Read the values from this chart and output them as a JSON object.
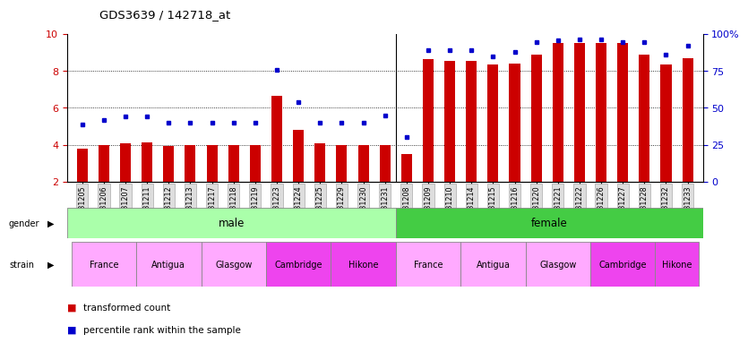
{
  "title": "GDS3639 / 142718_at",
  "samples": [
    "GSM231205",
    "GSM231206",
    "GSM231207",
    "GSM231211",
    "GSM231212",
    "GSM231213",
    "GSM231217",
    "GSM231218",
    "GSM231219",
    "GSM231223",
    "GSM231224",
    "GSM231225",
    "GSM231229",
    "GSM231230",
    "GSM231231",
    "GSM231208",
    "GSM231209",
    "GSM231210",
    "GSM231214",
    "GSM231215",
    "GSM231216",
    "GSM231220",
    "GSM231221",
    "GSM231222",
    "GSM231226",
    "GSM231227",
    "GSM231228",
    "GSM231232",
    "GSM231233"
  ],
  "red_bars": [
    3.8,
    4.0,
    4.1,
    4.15,
    3.95,
    4.0,
    4.0,
    4.0,
    4.0,
    6.65,
    4.8,
    4.1,
    4.0,
    4.0,
    4.0,
    3.5,
    8.65,
    8.55,
    8.55,
    8.35,
    8.4,
    8.85,
    9.5,
    9.5,
    9.5,
    9.5,
    8.85,
    8.35,
    8.7
  ],
  "blue_dots": [
    5.1,
    5.35,
    5.55,
    5.55,
    5.2,
    5.2,
    5.2,
    5.2,
    5.2,
    8.05,
    6.3,
    5.2,
    5.2,
    5.2,
    5.6,
    4.4,
    9.1,
    9.1,
    9.1,
    8.8,
    9.0,
    9.55,
    9.65,
    9.7,
    9.7,
    9.55,
    9.55,
    8.85,
    9.35
  ],
  "ylim_left": [
    2,
    10
  ],
  "ylim_right": [
    0,
    100
  ],
  "yticks_left": [
    2,
    4,
    6,
    8,
    10
  ],
  "yticks_right": [
    0,
    25,
    50,
    75,
    100
  ],
  "bar_color": "#cc0000",
  "dot_color": "#0000cc",
  "background_color": "#ffffff",
  "tick_label_color_left": "#cc0000",
  "tick_label_color_right": "#0000cc",
  "bar_width": 0.5,
  "n_male": 15,
  "gender_male_color": "#aaffaa",
  "gender_female_color": "#44cc44",
  "strain_defs": [
    {
      "label": "France",
      "xstart": 0,
      "xend": 3,
      "color": "#ffaaff"
    },
    {
      "label": "Antigua",
      "xstart": 3,
      "xend": 6,
      "color": "#ffaaff"
    },
    {
      "label": "Glasgow",
      "xstart": 6,
      "xend": 9,
      "color": "#ffaaff"
    },
    {
      "label": "Cambridge",
      "xstart": 9,
      "xend": 12,
      "color": "#ee44ee"
    },
    {
      "label": "Hikone",
      "xstart": 12,
      "xend": 15,
      "color": "#ee44ee"
    },
    {
      "label": "France",
      "xstart": 15,
      "xend": 18,
      "color": "#ffaaff"
    },
    {
      "label": "Antigua",
      "xstart": 18,
      "xend": 21,
      "color": "#ffaaff"
    },
    {
      "label": "Glasgow",
      "xstart": 21,
      "xend": 24,
      "color": "#ffaaff"
    },
    {
      "label": "Cambridge",
      "xstart": 24,
      "xend": 27,
      "color": "#ee44ee"
    },
    {
      "label": "Hikone",
      "xstart": 27,
      "xend": 29,
      "color": "#ee44ee"
    }
  ]
}
